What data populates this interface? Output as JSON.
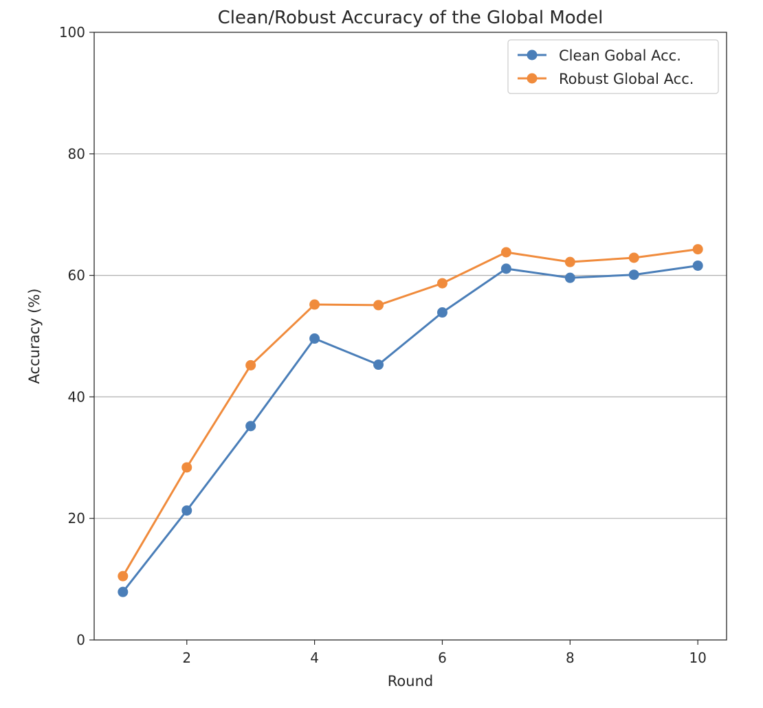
{
  "chart_data": {
    "type": "line",
    "title": "Clean/Robust Accuracy of the Global Model",
    "xlabel": "Round",
    "ylabel": "Accuracy (%)",
    "xlim": [
      0.55,
      10.45
    ],
    "ylim": [
      0,
      100
    ],
    "xticks": [
      2,
      4,
      6,
      8,
      10
    ],
    "xtick_labels": [
      "2",
      "4",
      "6",
      "8",
      "10"
    ],
    "yticks": [
      0,
      20,
      40,
      60,
      80,
      100
    ],
    "ytick_labels": [
      "0",
      "20",
      "40",
      "60",
      "80",
      "100"
    ],
    "grid": "y-major",
    "legend_position": "top-right",
    "x": [
      1,
      2,
      3,
      4,
      5,
      6,
      7,
      8,
      9,
      10
    ],
    "series": [
      {
        "name": "Clean Gobal Acc.",
        "color": "#4a7eb8",
        "values": [
          7.9,
          21.3,
          35.2,
          49.6,
          45.3,
          53.9,
          61.1,
          59.6,
          60.1,
          61.6
        ]
      },
      {
        "name": "Robust Global Acc.",
        "color": "#f08b3c",
        "values": [
          10.5,
          28.4,
          45.2,
          55.2,
          55.1,
          58.7,
          63.8,
          62.2,
          62.9,
          64.3
        ]
      }
    ]
  }
}
